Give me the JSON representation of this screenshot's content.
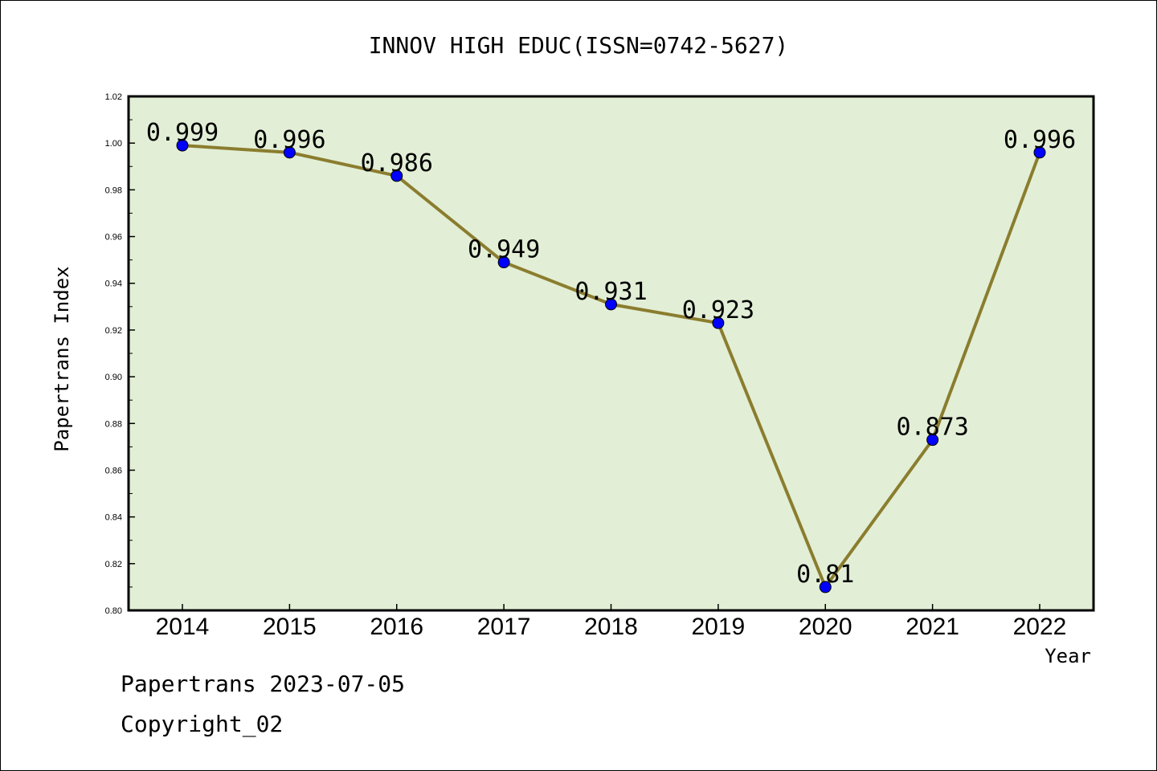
{
  "chart_data": {
    "type": "line",
    "title": "INNOV HIGH EDUC(ISSN=0742-5627)",
    "xlabel": "Year",
    "ylabel": "Papertrans Index",
    "categories": [
      "2014",
      "2015",
      "2016",
      "2017",
      "2018",
      "2019",
      "2020",
      "2021",
      "2022"
    ],
    "series": [
      {
        "values": [
          0.999,
          0.996,
          0.986,
          0.949,
          0.931,
          0.923,
          0.81,
          0.873,
          0.996
        ],
        "data_labels": [
          "0.999",
          "0.996",
          "0.986",
          "0.949",
          "0.931",
          "0.923",
          "0.81",
          "0.873",
          "0.996"
        ],
        "line_color": "#8b7d2f",
        "marker_color": "#0000ff"
      }
    ],
    "ylim": [
      0.8,
      1.02
    ],
    "yticks": [
      "0.80",
      "0.82",
      "0.84",
      "0.86",
      "0.88",
      "0.90",
      "0.92",
      "0.94",
      "0.96",
      "0.98",
      "1.00",
      "1.02"
    ],
    "grid": false,
    "plot_background": "#e2efd6"
  },
  "footer": {
    "source_line": "Papertrans 2023-07-05",
    "copyright_line": "Copyright_02"
  }
}
